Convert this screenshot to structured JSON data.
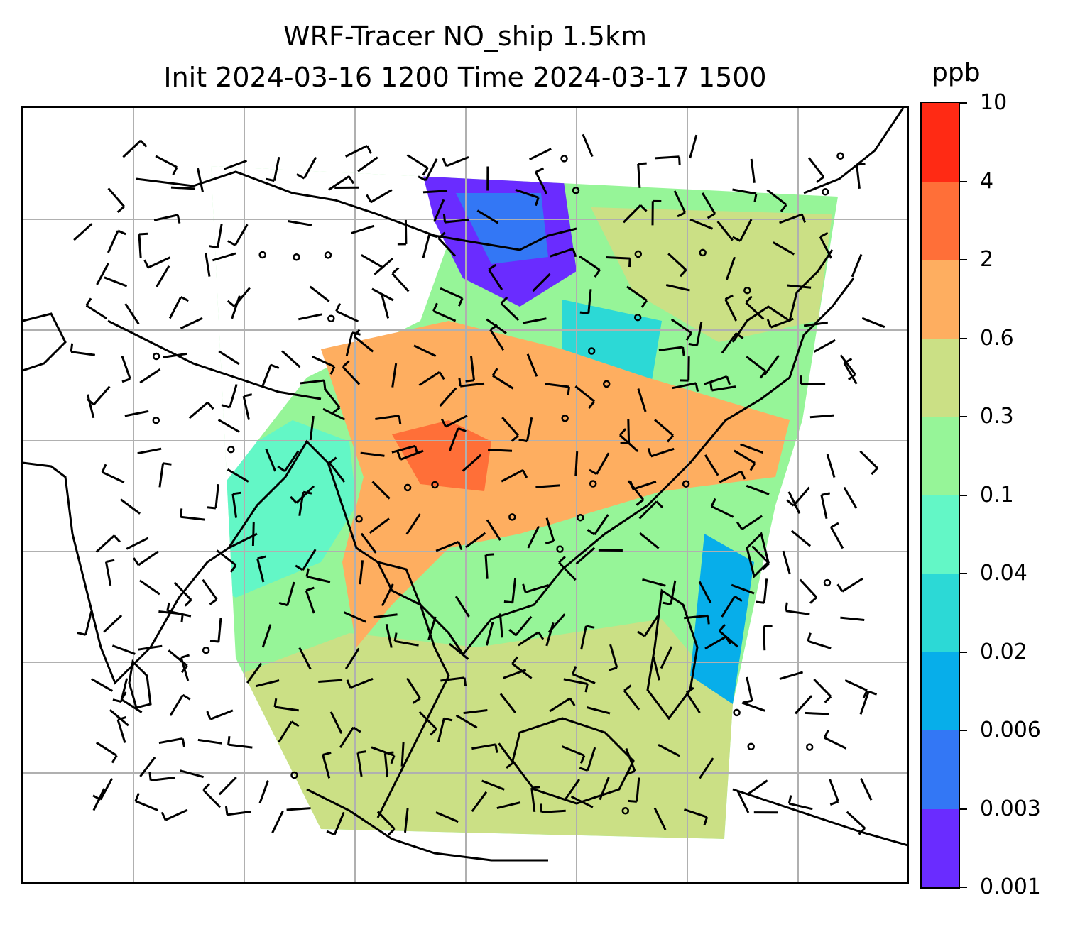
{
  "title": {
    "line1": "WRF-Tracer NO_ship 1.5km",
    "line2": "Init 2024-03-16 1200 Time 2024-03-17 1500"
  },
  "colorbar": {
    "unit": "ppb",
    "ticks": [
      "0.001",
      "0.003",
      "0.006",
      "0.02",
      "0.04",
      "0.1",
      "0.3",
      "0.6",
      "2",
      "4",
      "10"
    ],
    "colors": [
      "#6a2cff",
      "#3377f5",
      "#07aeea",
      "#2cd9d6",
      "#63f7c6",
      "#96f598",
      "#cbe085",
      "#feae60",
      "#ff6f38",
      "#ff2a14"
    ]
  },
  "map": {
    "gridlines": true,
    "coastline_color": "#000000",
    "calm_marker": "circle",
    "barb_color": "#000000"
  }
}
